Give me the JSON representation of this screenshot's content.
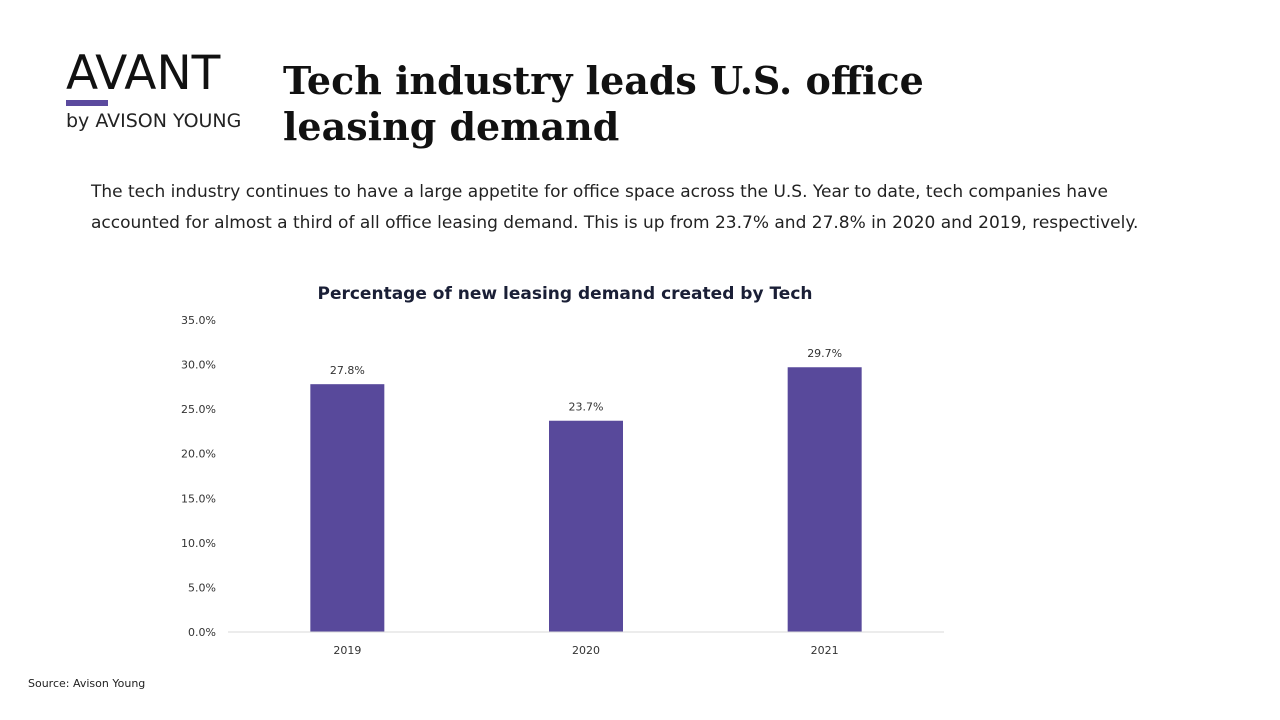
{
  "brand": {
    "name": "AVANT",
    "sub": "by AVISON YOUNG",
    "accent": "#5b4a9e"
  },
  "headline": "Tech industry leads U.S. office leasing demand",
  "intro": "The tech industry continues to have a large appetite for office space across the U.S. Year to date, tech companies have accounted for almost a third of all office leasing demand. This is up from 23.7% and 27.8% in 2020 and 2019, respectively.",
  "chart_data": {
    "type": "bar",
    "title": "Percentage of new leasing demand created by Tech",
    "categories": [
      "2019",
      "2020",
      "2021"
    ],
    "values": [
      27.8,
      23.7,
      29.7
    ],
    "value_labels": [
      "27.8%",
      "23.7%",
      "29.7%"
    ],
    "ylim": [
      0,
      35
    ],
    "yticks": [
      0,
      5,
      10,
      15,
      20,
      25,
      30,
      35
    ],
    "ytick_labels": [
      "0.0%",
      "5.0%",
      "10.0%",
      "15.0%",
      "20.0%",
      "25.0%",
      "30.0%",
      "35.0%"
    ],
    "bar_color": "#58499b",
    "grid": false,
    "legend": "none"
  },
  "source": "Source: Avison Young"
}
